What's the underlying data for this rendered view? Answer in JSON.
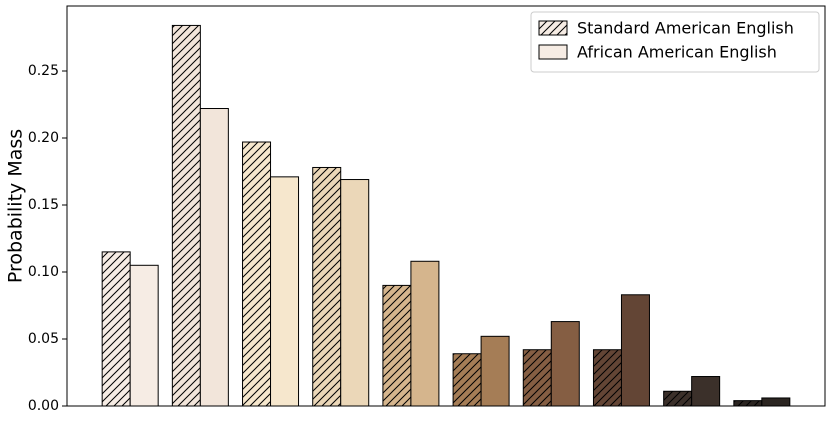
{
  "chart_data": {
    "type": "bar",
    "y_label": "Probability Mass",
    "categories": [
      null,
      null,
      null,
      null,
      null,
      null,
      null,
      null,
      null,
      null
    ],
    "category_colors": [
      "#f6ece4",
      "#f2e5da",
      "#f6e7cd",
      "#ebd7b8",
      "#d5b58d",
      "#a57d56",
      "#855e43",
      "#634535",
      "#3b302a",
      "#2b2521"
    ],
    "series": [
      {
        "name": "Standard American English",
        "color": "#f6ece4",
        "hatch": "//",
        "values": [
          0.115,
          0.284,
          0.197,
          0.178,
          0.09,
          0.039,
          0.042,
          0.042,
          0.011,
          0.004
        ]
      },
      {
        "name": "African American English",
        "color": "#f6ece4",
        "hatch": null,
        "values": [
          0.105,
          0.222,
          0.171,
          0.169,
          0.108,
          0.052,
          0.063,
          0.083,
          0.022,
          0.006
        ]
      }
    ],
    "ylim": [
      0,
      0.2985
    ],
    "yticks": [
      {
        "value": 0,
        "label": "0.00"
      },
      {
        "value": 0.05,
        "label": "0.05"
      },
      {
        "value": 0.1,
        "label": "0.10"
      },
      {
        "value": 0.15,
        "label": "0.15"
      },
      {
        "value": 0.2,
        "label": "0.20"
      },
      {
        "value": 0.25,
        "label": "0.25"
      }
    ],
    "legend": "upper right",
    "grid": false
  }
}
